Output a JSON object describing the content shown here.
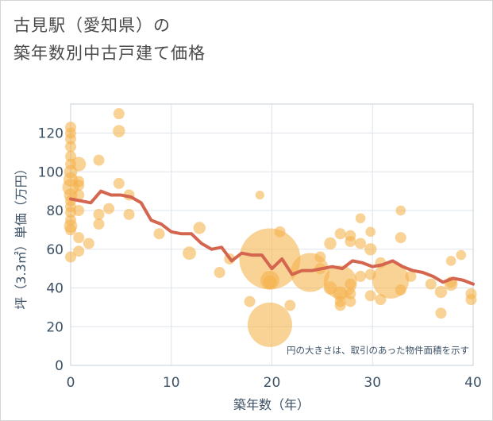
{
  "title_line1": "古見駅（愛知県）の",
  "title_line2": "築年数別中古戸建て価格",
  "chart_data": {
    "type": "scatter",
    "xlabel": "築年数（年）",
    "ylabel": "坪（3.3㎡）単価（万円）",
    "xlim": [
      0,
      40
    ],
    "ylim": [
      0,
      135
    ],
    "xticks": [
      0,
      10,
      20,
      30,
      40
    ],
    "yticks": [
      0,
      20,
      40,
      60,
      80,
      100,
      120
    ],
    "grid": true,
    "annotation": "円の大きさは、取引のあった物件面積を示す",
    "colors": {
      "bubble": "#f5b24a",
      "line": "#d4654f",
      "grid": "#dfe4ea",
      "axis_text": "#3d5266",
      "plot_border": "#c6d0d9"
    },
    "bubbles": [
      {
        "x": 0,
        "y": 123,
        "s": 1
      },
      {
        "x": 0,
        "y": 120,
        "s": 1
      },
      {
        "x": 0,
        "y": 117,
        "s": 1
      },
      {
        "x": 0,
        "y": 113,
        "s": 1
      },
      {
        "x": 0,
        "y": 108,
        "s": 1
      },
      {
        "x": 0,
        "y": 104,
        "s": 1
      },
      {
        "x": 0,
        "y": 100,
        "s": 1.2
      },
      {
        "x": 0,
        "y": 96,
        "s": 1.3
      },
      {
        "x": 0,
        "y": 92,
        "s": 1.5
      },
      {
        "x": 0,
        "y": 88,
        "s": 1.2
      },
      {
        "x": 0,
        "y": 85,
        "s": 1
      },
      {
        "x": 0,
        "y": 82,
        "s": 1
      },
      {
        "x": 0,
        "y": 79,
        "s": 1
      },
      {
        "x": 0,
        "y": 75,
        "s": 1
      },
      {
        "x": 0,
        "y": 72,
        "s": 1.2
      },
      {
        "x": 0,
        "y": 70,
        "s": 1
      },
      {
        "x": 0,
        "y": 56,
        "s": 1
      },
      {
        "x": 0.8,
        "y": 104,
        "s": 1.3
      },
      {
        "x": 0.8,
        "y": 95,
        "s": 1
      },
      {
        "x": 0.8,
        "y": 93,
        "s": 1
      },
      {
        "x": 0.8,
        "y": 88,
        "s": 1
      },
      {
        "x": 0.8,
        "y": 80,
        "s": 1
      },
      {
        "x": 0.8,
        "y": 66,
        "s": 1
      },
      {
        "x": 0.8,
        "y": 59,
        "s": 1
      },
      {
        "x": 1.8,
        "y": 63,
        "s": 1
      },
      {
        "x": 2.8,
        "y": 106,
        "s": 1
      },
      {
        "x": 2.8,
        "y": 78,
        "s": 1
      },
      {
        "x": 2.8,
        "y": 73,
        "s": 1
      },
      {
        "x": 3.8,
        "y": 81,
        "s": 1
      },
      {
        "x": 4.8,
        "y": 130,
        "s": 1
      },
      {
        "x": 4.8,
        "y": 121,
        "s": 1.1
      },
      {
        "x": 4.8,
        "y": 94,
        "s": 1
      },
      {
        "x": 5.8,
        "y": 88,
        "s": 1
      },
      {
        "x": 5.8,
        "y": 78,
        "s": 1
      },
      {
        "x": 8.8,
        "y": 68,
        "s": 1
      },
      {
        "x": 11.8,
        "y": 58,
        "s": 1.2
      },
      {
        "x": 12.8,
        "y": 71,
        "s": 1.1
      },
      {
        "x": 14.8,
        "y": 48,
        "s": 1
      },
      {
        "x": 15.8,
        "y": 55,
        "s": 1
      },
      {
        "x": 17.8,
        "y": 33,
        "s": 1
      },
      {
        "x": 18.8,
        "y": 88,
        "s": 0.8
      },
      {
        "x": 19.8,
        "y": 55,
        "s": 5.5
      },
      {
        "x": 19.8,
        "y": 44,
        "s": 1.7
      },
      {
        "x": 19.8,
        "y": 43,
        "s": 1.2
      },
      {
        "x": 19.8,
        "y": 21,
        "s": 4
      },
      {
        "x": 20.8,
        "y": 69,
        "s": 1
      },
      {
        "x": 21.8,
        "y": 31,
        "s": 1
      },
      {
        "x": 23.8,
        "y": 48,
        "s": 3.5
      },
      {
        "x": 24.8,
        "y": 56,
        "s": 1
      },
      {
        "x": 24.8,
        "y": 50,
        "s": 1
      },
      {
        "x": 25.8,
        "y": 63,
        "s": 1.1
      },
      {
        "x": 25.8,
        "y": 40,
        "s": 1.2
      },
      {
        "x": 26.8,
        "y": 68,
        "s": 1
      },
      {
        "x": 26.8,
        "y": 43,
        "s": 3
      },
      {
        "x": 26.8,
        "y": 37,
        "s": 1.3
      },
      {
        "x": 26.8,
        "y": 33,
        "s": 1
      },
      {
        "x": 26.8,
        "y": 31,
        "s": 1
      },
      {
        "x": 27.8,
        "y": 67,
        "s": 1
      },
      {
        "x": 27.8,
        "y": 64,
        "s": 1
      },
      {
        "x": 27.8,
        "y": 42,
        "s": 1
      },
      {
        "x": 27.8,
        "y": 37,
        "s": 1
      },
      {
        "x": 27.8,
        "y": 33,
        "s": 1
      },
      {
        "x": 28.8,
        "y": 76,
        "s": 0.9
      },
      {
        "x": 28.8,
        "y": 63,
        "s": 1
      },
      {
        "x": 28.8,
        "y": 46,
        "s": 1
      },
      {
        "x": 29.8,
        "y": 69,
        "s": 0.9
      },
      {
        "x": 29.8,
        "y": 60,
        "s": 1.1
      },
      {
        "x": 29.8,
        "y": 47,
        "s": 1
      },
      {
        "x": 29.8,
        "y": 36,
        "s": 1
      },
      {
        "x": 30.8,
        "y": 53,
        "s": 1
      },
      {
        "x": 30.8,
        "y": 34,
        "s": 1
      },
      {
        "x": 31.8,
        "y": 44,
        "s": 3.3
      },
      {
        "x": 32.8,
        "y": 80,
        "s": 0.9
      },
      {
        "x": 32.8,
        "y": 66,
        "s": 1
      },
      {
        "x": 32.8,
        "y": 39,
        "s": 1
      },
      {
        "x": 33.8,
        "y": 46,
        "s": 1
      },
      {
        "x": 35.8,
        "y": 42,
        "s": 1
      },
      {
        "x": 36.8,
        "y": 38,
        "s": 1.1
      },
      {
        "x": 36.8,
        "y": 27,
        "s": 1
      },
      {
        "x": 37.8,
        "y": 54,
        "s": 0.9
      },
      {
        "x": 37.8,
        "y": 43,
        "s": 1
      },
      {
        "x": 37.8,
        "y": 42,
        "s": 1.2
      },
      {
        "x": 38.8,
        "y": 57,
        "s": 0.9
      },
      {
        "x": 39.8,
        "y": 37,
        "s": 1
      },
      {
        "x": 39.8,
        "y": 34,
        "s": 1
      }
    ],
    "line": {
      "x": [
        0,
        1,
        2,
        3,
        4,
        5,
        6,
        7,
        8,
        9,
        10,
        11,
        12,
        13,
        14,
        15,
        16,
        17,
        18,
        19,
        20,
        21,
        22,
        23,
        24,
        25,
        26,
        27,
        28,
        29,
        30,
        31,
        32,
        33,
        34,
        35,
        36,
        37,
        38,
        39,
        40
      ],
      "y": [
        86,
        85,
        84,
        90,
        88,
        88,
        87,
        84,
        75,
        73,
        69,
        68,
        68,
        63,
        60,
        61,
        54,
        58,
        57,
        57,
        50,
        55,
        47,
        49,
        49,
        50,
        51,
        50,
        54,
        53,
        51,
        52,
        54,
        51,
        49,
        48,
        46,
        43,
        45,
        44,
        42
      ]
    }
  }
}
